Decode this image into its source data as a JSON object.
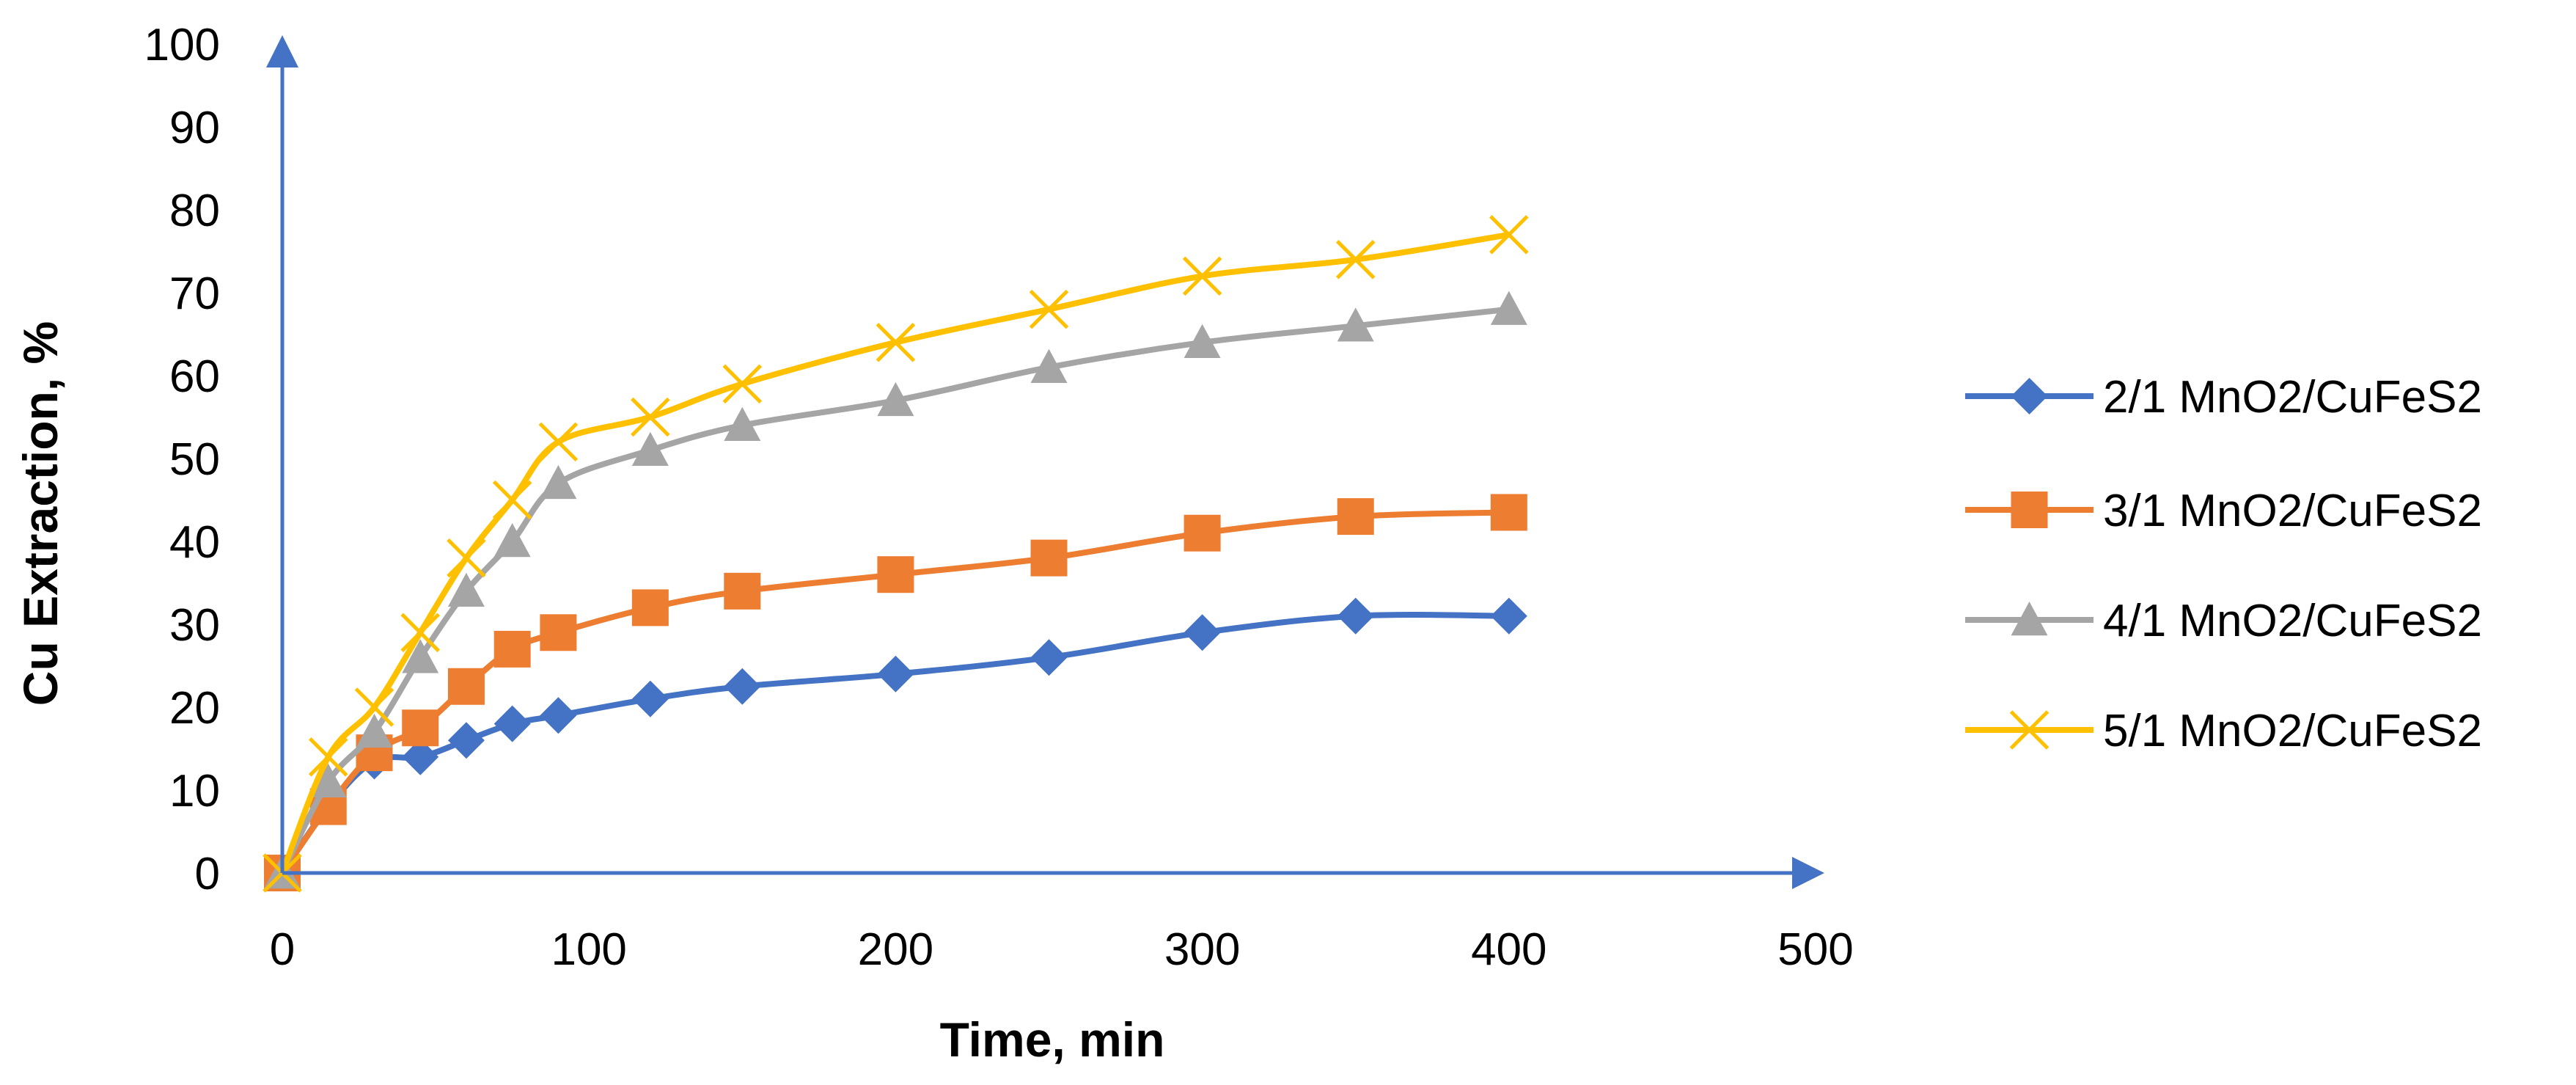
{
  "colors": {
    "axis": "#4472C4",
    "background": "#ffffff"
  },
  "chart_data": {
    "type": "line",
    "title": "",
    "xlabel": "Time, min",
    "ylabel": "Cu  Extraction, %",
    "xlim": [
      0,
      500
    ],
    "ylim": [
      0,
      100
    ],
    "xticks": [
      0,
      100,
      200,
      300,
      400,
      500
    ],
    "yticks": [
      0,
      10,
      20,
      30,
      40,
      50,
      60,
      70,
      80,
      90,
      100
    ],
    "grid": false,
    "legend_position": "right",
    "series": [
      {
        "name": "2/1 MnO2/CuFeS2",
        "color": "#4472C4",
        "marker": "diamond",
        "x": [
          0,
          15,
          30,
          45,
          60,
          75,
          90,
          120,
          150,
          200,
          250,
          300,
          350,
          400
        ],
        "y": [
          0,
          8,
          13.5,
          14,
          16,
          18,
          19,
          21,
          22.5,
          24,
          26,
          29,
          31,
          31
        ]
      },
      {
        "name": "3/1 MnO2/CuFeS2",
        "color": "#ED7D31",
        "marker": "square",
        "x": [
          0,
          15,
          30,
          45,
          60,
          75,
          90,
          120,
          150,
          200,
          250,
          300,
          350,
          400
        ],
        "y": [
          0,
          8,
          14.5,
          17.5,
          22.5,
          27,
          29,
          32,
          34,
          36,
          38,
          41,
          43,
          43.5
        ]
      },
      {
        "name": "4/1 MnO2/CuFeS2",
        "color": "#A5A5A5",
        "marker": "triangle",
        "x": [
          0,
          15,
          30,
          45,
          60,
          75,
          90,
          120,
          150,
          200,
          250,
          300,
          350,
          400
        ],
        "y": [
          0,
          11,
          17,
          26,
          34,
          40,
          47,
          51,
          54,
          57,
          61,
          64,
          66,
          68
        ]
      },
      {
        "name": "5/1 MnO2/CuFeS2",
        "color": "#FFC000",
        "marker": "x",
        "x": [
          0,
          15,
          30,
          45,
          60,
          75,
          90,
          120,
          150,
          200,
          250,
          300,
          350,
          400
        ],
        "y": [
          0,
          14,
          20,
          29,
          38,
          45,
          52,
          55,
          59,
          64,
          68,
          72,
          74,
          77
        ]
      }
    ]
  }
}
